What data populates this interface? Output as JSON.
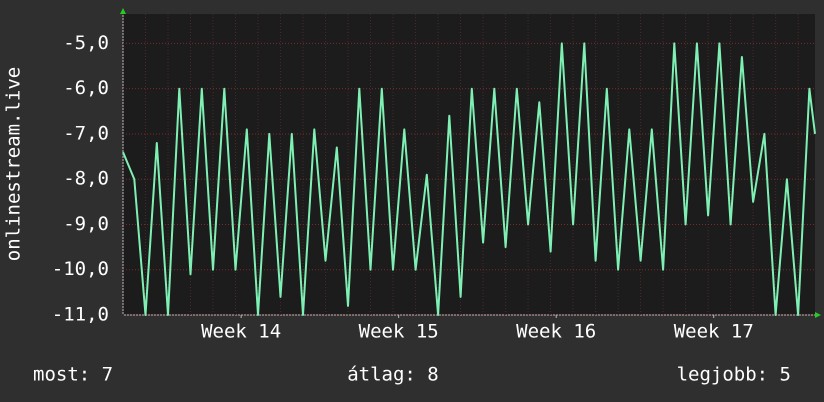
{
  "chart_data": {
    "type": "line",
    "y_label": "onlinestream.live",
    "x": [
      0,
      0.5,
      1,
      1.5,
      2,
      2.5,
      3,
      3.5,
      4,
      4.5,
      5,
      5.5,
      6,
      6.5,
      7,
      7.5,
      8,
      8.5,
      9,
      9.5,
      10,
      10.5,
      11,
      11.5,
      12,
      12.5,
      13,
      13.5,
      14,
      14.5,
      15,
      15.5,
      16,
      16.5,
      17,
      17.5,
      18,
      18.5,
      19,
      19.5,
      20,
      20.5,
      21,
      21.5,
      22,
      22.5,
      23,
      23.5,
      24,
      24.5,
      25,
      25.5,
      26,
      26.5,
      27,
      27.5,
      28,
      28.5,
      29,
      29.5,
      30,
      30.5,
      30.75
    ],
    "series": [
      {
        "color": "#7ff0b4",
        "values": [
          -7.4,
          -8.0,
          -11,
          -7.2,
          -11,
          -6.0,
          -10.1,
          -6.0,
          -10.0,
          -6.0,
          -10.0,
          -6.9,
          -11,
          -7.0,
          -10.6,
          -7.0,
          -11,
          -6.9,
          -9.8,
          -7.3,
          -10.8,
          -6.0,
          -10.0,
          -6.0,
          -10.0,
          -6.9,
          -10.0,
          -7.9,
          -11,
          -6.6,
          -10.6,
          -6.0,
          -9.4,
          -6.0,
          -9.5,
          -6.0,
          -9.0,
          -6.3,
          -9.6,
          -5.0,
          -9.0,
          -5.0,
          -9.8,
          -6.0,
          -10.0,
          -6.9,
          -9.8,
          -6.9,
          -10.0,
          -5.0,
          -9.0,
          -5.0,
          -8.8,
          -5.0,
          -9.0,
          -5.3,
          -8.5,
          -7.0,
          -11,
          -8.0,
          -11,
          -6.0,
          -7.0
        ]
      }
    ],
    "xlim": [
      0,
      30.75
    ],
    "xticks": [
      {
        "value": 5.25,
        "label": "Week 14"
      },
      {
        "value": 12.25,
        "label": "Week 15"
      },
      {
        "value": 19.25,
        "label": "Week 16"
      },
      {
        "value": 26.25,
        "label": "Week 17"
      }
    ],
    "ylim": [
      -11,
      -4.35
    ],
    "yticks": [
      {
        "value": -11,
        "label": "-11,0"
      },
      {
        "value": -10,
        "label": "-10,0"
      },
      {
        "value": -9,
        "label": "-9,0"
      },
      {
        "value": -8,
        "label": "-8,0"
      },
      {
        "value": -7,
        "label": "-7,0"
      },
      {
        "value": -6,
        "label": "-6,0"
      },
      {
        "value": -5,
        "label": "-5,0"
      }
    ],
    "grid": true,
    "legend_items": [
      "most: 7",
      "átlag: 8",
      "legjobb: 5"
    ]
  }
}
